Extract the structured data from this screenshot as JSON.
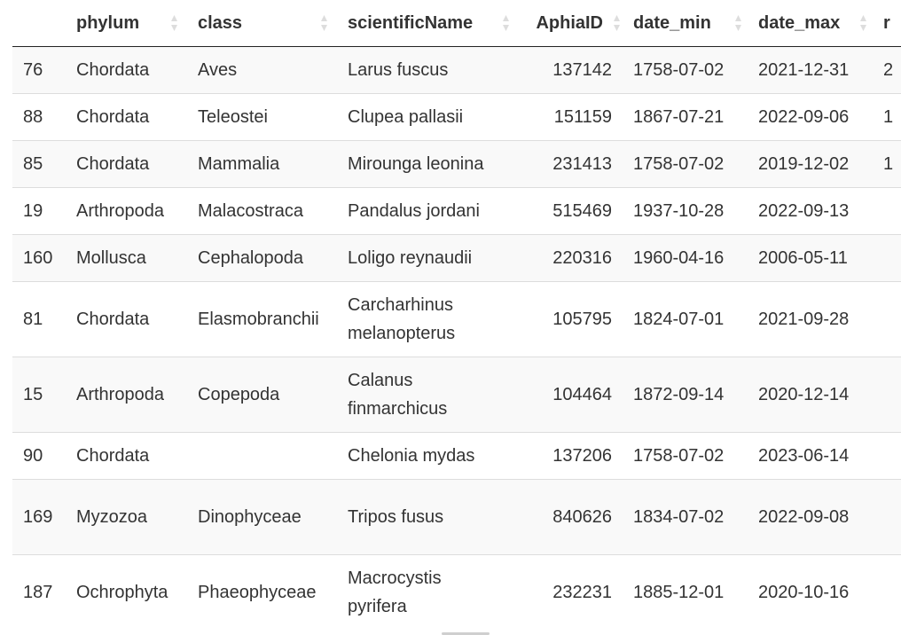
{
  "table": {
    "columns": [
      {
        "key": "index",
        "label": ""
      },
      {
        "key": "phylum",
        "label": "phylum"
      },
      {
        "key": "class",
        "label": "class"
      },
      {
        "key": "scientificName",
        "label": "scientificName"
      },
      {
        "key": "AphiaID",
        "label": "AphiaID"
      },
      {
        "key": "date_min",
        "label": "date_min"
      },
      {
        "key": "date_max",
        "label": "date_max"
      },
      {
        "key": "extra",
        "label": "r"
      }
    ],
    "rows": [
      {
        "index": "76",
        "phylum": "Chordata",
        "class": "Aves",
        "scientificName": "Larus fuscus",
        "AphiaID": "137142",
        "date_min": "1758-07-02",
        "date_max": "2021-12-31",
        "extra": "2"
      },
      {
        "index": "88",
        "phylum": "Chordata",
        "class": "Teleostei",
        "scientificName": "Clupea pallasii",
        "AphiaID": "151159",
        "date_min": "1867-07-21",
        "date_max": "2022-09-06",
        "extra": "1"
      },
      {
        "index": "85",
        "phylum": "Chordata",
        "class": "Mammalia",
        "scientificName": "Mirounga leonina",
        "AphiaID": "231413",
        "date_min": "1758-07-02",
        "date_max": "2019-12-02",
        "extra": "1"
      },
      {
        "index": "19",
        "phylum": "Arthropoda",
        "class": "Malacostraca",
        "scientificName": "Pandalus jordani",
        "AphiaID": "515469",
        "date_min": "1937-10-28",
        "date_max": "2022-09-13",
        "extra": ""
      },
      {
        "index": "160",
        "phylum": "Mollusca",
        "class": "Cephalopoda",
        "scientificName": "Loligo reynaudii",
        "AphiaID": "220316",
        "date_min": "1960-04-16",
        "date_max": "2006-05-11",
        "extra": ""
      },
      {
        "index": "81",
        "phylum": "Chordata",
        "class": "Elasmobranchii",
        "scientificName": "Carcharhinus melanopterus",
        "AphiaID": "105795",
        "date_min": "1824-07-01",
        "date_max": "2021-09-28",
        "extra": ""
      },
      {
        "index": "15",
        "phylum": "Arthropoda",
        "class": "Copepoda",
        "scientificName": "Calanus finmarchicus",
        "AphiaID": "104464",
        "date_min": "1872-09-14",
        "date_max": "2020-12-14",
        "extra": ""
      },
      {
        "index": "90",
        "phylum": "Chordata",
        "class": "",
        "scientificName": "Chelonia mydas",
        "AphiaID": "137206",
        "date_min": "1758-07-02",
        "date_max": "2023-06-14",
        "extra": ""
      },
      {
        "index": "169",
        "phylum": "Myzozoa",
        "class": "Dinophyceae",
        "scientificName": "Tripos fusus",
        "AphiaID": "840626",
        "date_min": "1834-07-02",
        "date_max": "2022-09-08",
        "extra": ""
      },
      {
        "index": "187",
        "phylum": "Ochrophyta",
        "class": "Phaeophyceae",
        "scientificName": "Macrocystis pyrifera",
        "AphiaID": "232231",
        "date_min": "1885-12-01",
        "date_max": "2020-10-16",
        "extra": ""
      }
    ]
  },
  "icons": {
    "sort": "sort-both-icon"
  },
  "colors": {
    "stripe": "#f9f9f9",
    "row_border": "#dddddd",
    "header_border": "#222222",
    "sort_icon": "#dddddd",
    "text": "#333333"
  }
}
